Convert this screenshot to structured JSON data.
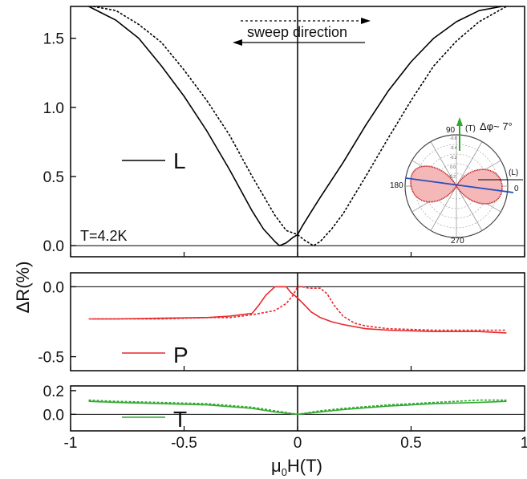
{
  "chart_data": {
    "type": "line",
    "xlabel": "μ0H(T)",
    "xlabel_main": "μ",
    "xlabel_sub": "0",
    "xlabel_rest": "H(T)",
    "ylabel": "ΔR(%)",
    "xlim": [
      -1,
      1
    ],
    "x_ticks": [
      "-1",
      "-0.5",
      "0",
      "0.5",
      "1"
    ],
    "panels": [
      {
        "legend": "L",
        "color": "#000000",
        "ylim": [
          -0.08,
          1.73
        ],
        "y_ticks": [
          "0.0",
          "0.5",
          "1.0",
          "1.5"
        ],
        "y_tick_values": [
          0.0,
          0.5,
          1.0,
          1.5
        ],
        "annotation": "T=4.2K",
        "sweep_label": "sweep direction",
        "series": [
          {
            "style": "solid",
            "x": [
              -0.92,
              -0.8,
              -0.7,
              -0.6,
              -0.5,
              -0.4,
              -0.3,
              -0.2,
              -0.15,
              -0.1,
              -0.08,
              -0.05,
              -0.02,
              0.0,
              0.02,
              0.05,
              0.1,
              0.2,
              0.3,
              0.4,
              0.5,
              0.6,
              0.7,
              0.8,
              0.9
            ],
            "y": [
              1.73,
              1.63,
              1.5,
              1.3,
              1.08,
              0.83,
              0.55,
              0.25,
              0.12,
              0.03,
              0.0,
              0.02,
              0.06,
              0.08,
              0.14,
              0.22,
              0.35,
              0.6,
              0.87,
              1.12,
              1.33,
              1.5,
              1.62,
              1.7,
              1.73
            ]
          },
          {
            "style": "dashed",
            "x": [
              -0.9,
              -0.8,
              -0.7,
              -0.6,
              -0.5,
              -0.4,
              -0.3,
              -0.2,
              -0.1,
              -0.05,
              0.0,
              0.03,
              0.07,
              0.1,
              0.15,
              0.2,
              0.3,
              0.4,
              0.5,
              0.6,
              0.7,
              0.8,
              0.92
            ],
            "y": [
              1.73,
              1.7,
              1.6,
              1.47,
              1.27,
              1.05,
              0.8,
              0.5,
              0.22,
              0.11,
              0.08,
              0.04,
              0.0,
              0.03,
              0.12,
              0.23,
              0.5,
              0.78,
              1.05,
              1.3,
              1.48,
              1.62,
              1.73
            ]
          }
        ]
      },
      {
        "legend": "P",
        "color": "#e8282c",
        "ylim": [
          -0.6,
          0.1
        ],
        "y_ticks": [
          "0.0",
          "-0.5"
        ],
        "y_tick_values": [
          0.0,
          -0.5
        ],
        "series": [
          {
            "style": "solid",
            "x": [
              -0.92,
              -0.8,
              -0.6,
              -0.4,
              -0.3,
              -0.2,
              -0.17,
              -0.14,
              -0.1,
              -0.07,
              -0.05,
              -0.03,
              0.0,
              0.03,
              0.06,
              0.1,
              0.15,
              0.2,
              0.3,
              0.4,
              0.6,
              0.8,
              0.92
            ],
            "y": [
              -0.23,
              -0.23,
              -0.225,
              -0.22,
              -0.21,
              -0.19,
              -0.13,
              -0.06,
              0.0,
              0.0,
              0.0,
              -0.04,
              -0.08,
              -0.13,
              -0.18,
              -0.22,
              -0.25,
              -0.27,
              -0.3,
              -0.31,
              -0.32,
              -0.32,
              -0.33
            ]
          },
          {
            "style": "dashed",
            "x": [
              -0.9,
              -0.8,
              -0.6,
              -0.4,
              -0.3,
              -0.2,
              -0.1,
              -0.05,
              -0.02,
              0.0,
              0.02,
              0.05,
              0.1,
              0.13,
              0.16,
              0.2,
              0.25,
              0.3,
              0.4,
              0.6,
              0.8,
              0.92
            ],
            "y": [
              -0.23,
              -0.23,
              -0.23,
              -0.22,
              -0.22,
              -0.2,
              -0.17,
              -0.12,
              -0.06,
              0.0,
              0.0,
              -0.01,
              -0.01,
              -0.05,
              -0.13,
              -0.21,
              -0.26,
              -0.28,
              -0.3,
              -0.31,
              -0.31,
              -0.31
            ]
          }
        ]
      },
      {
        "legend": "T",
        "color": "#2fa82f",
        "ylim": [
          -0.14,
          0.24
        ],
        "y_ticks": [
          "0.2",
          "0.0"
        ],
        "y_tick_values": [
          0.2,
          0.0
        ],
        "series": [
          {
            "style": "solid",
            "x": [
              -0.92,
              -0.8,
              -0.6,
              -0.4,
              -0.2,
              -0.1,
              0.0,
              0.1,
              0.2,
              0.4,
              0.6,
              0.8,
              0.92
            ],
            "y": [
              0.11,
              0.1,
              0.09,
              0.08,
              0.05,
              0.02,
              0.0,
              0.02,
              0.04,
              0.07,
              0.09,
              0.1,
              0.11
            ]
          },
          {
            "style": "dashed",
            "x": [
              -0.92,
              -0.8,
              -0.6,
              -0.4,
              -0.2,
              -0.1,
              0.0,
              0.1,
              0.2,
              0.4,
              0.6,
              0.8,
              0.92
            ],
            "y": [
              0.12,
              0.11,
              0.1,
              0.09,
              0.06,
              0.03,
              0.0,
              0.03,
              0.05,
              0.08,
              0.1,
              0.12,
              0.12
            ]
          }
        ]
      }
    ],
    "inset": {
      "type": "polar",
      "title": "Δφ~ 7°",
      "angle_labels": [
        "90",
        "180",
        "270",
        "0"
      ],
      "axis_labels": [
        "(T)",
        "(L)"
      ],
      "radial_labels": [
        "-0.6",
        "-0.4",
        "-0.2",
        "0.0",
        "0.2"
      ],
      "fill_color": "#f4b8b8",
      "outline_color": "#c21a1a",
      "line_color": "#2a4fbf",
      "arrow_color": "#2fa82f"
    }
  }
}
